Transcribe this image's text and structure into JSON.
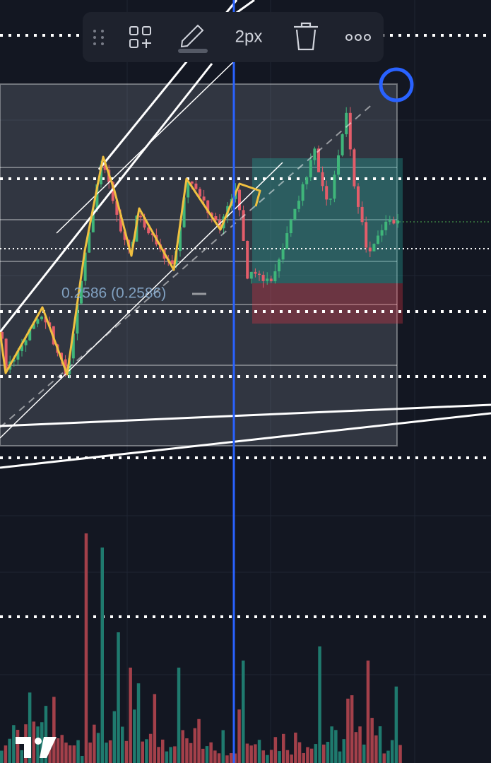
{
  "toolbar": {
    "width_label": "2px"
  },
  "chart": {
    "fib_label": "0.2586 (0.2586)"
  }
}
